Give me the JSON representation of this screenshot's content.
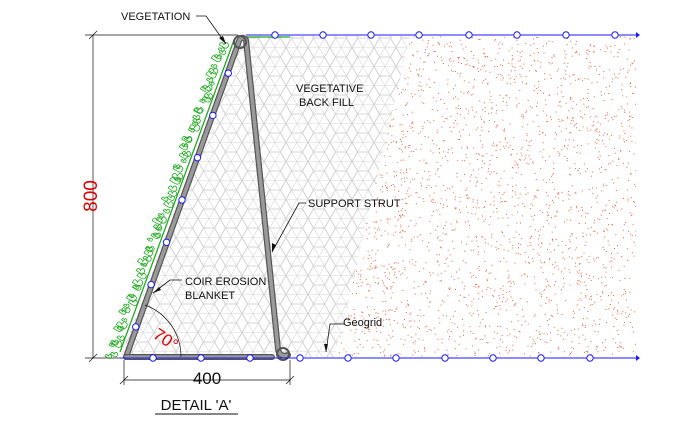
{
  "labels": {
    "vegetation": "VEGETATION",
    "backfill_line1": "VEGETATIVE",
    "backfill_line2": "BACK FILL",
    "support_strut": "SUPPORT STRUT",
    "coir_line1": "COIR EROSION",
    "coir_line2": "BLANKET",
    "geogrid": "Geogrid",
    "detail_title": "DETAIL 'A'"
  },
  "dimensions": {
    "height": "800",
    "width": "400",
    "angle": "70°"
  },
  "colors": {
    "dimension_red": "#e00000",
    "geogrid_blue": "#1a1aff",
    "vegetation_green": "#22aa22",
    "fill_dots": "#e8643c",
    "strut_gray": "#8a8a8a",
    "hatch_gray": "#c8c8c8",
    "line_black": "#111111"
  },
  "icons": {
    "geogrid_node": "circle-node-icon",
    "hatch_pattern": "hexagonal-hatch-icon"
  }
}
